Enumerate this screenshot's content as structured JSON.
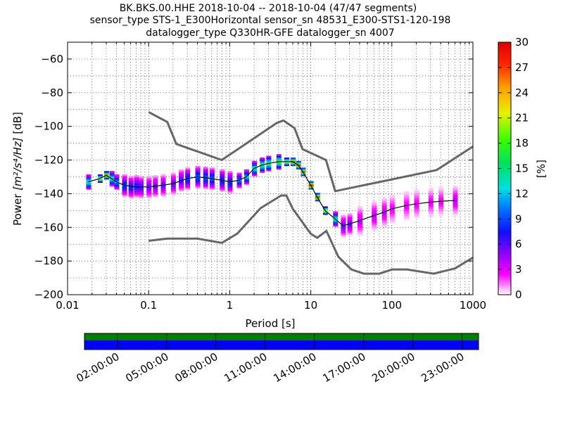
{
  "title_lines": [
    "BK.BKS.00.HHE   2018-10-04 -- 2018-10-04  (47/47 segments)",
    "sensor_type STS-1_E300Horizontal sensor_sn 48531_E300-STS1-120-198",
    "datalogger_type Q330HR-GFE datalogger_sn 4007"
  ],
  "colorbar": {
    "label": "[%]",
    "ticks": [
      "0",
      "3",
      "6",
      "9",
      "12",
      "15",
      "18",
      "21",
      "24",
      "27",
      "30"
    ],
    "range": [
      0,
      30
    ]
  },
  "timeline": {
    "tick_labels": [
      "02:00:00",
      "05:00:00",
      "08:00:00",
      "11:00:00",
      "14:00:00",
      "17:00:00",
      "20:00:00",
      "23:00:00"
    ],
    "coverage_color": "#008000",
    "data_color": "#0000ff"
  },
  "colors": {
    "model_curve": "#666666",
    "mean_curve": "#000000",
    "grid": "#000000"
  },
  "chart_data": {
    "type": "heatmap",
    "xlabel": "Period [s]",
    "ylabel_prefix": "Power ",
    "ylabel_math": "[m²/s⁴/Hz]",
    "ylabel_suffix": " [dB]",
    "xscale": "log",
    "xlim": [
      0.01,
      1000
    ],
    "ylim": [
      -200,
      -50
    ],
    "x_ticks": [
      {
        "v": 0.01,
        "label": "0.01"
      },
      {
        "v": 0.1,
        "label": "0.1"
      },
      {
        "v": 1,
        "label": "1"
      },
      {
        "v": 10,
        "label": "10"
      },
      {
        "v": 100,
        "label": "100"
      },
      {
        "v": 1000,
        "label": "1000"
      }
    ],
    "y_ticks": [
      -60,
      -80,
      -100,
      -120,
      -140,
      -160,
      -180,
      -200
    ],
    "grid": true,
    "nhnm": [
      [
        0.1,
        -91.5
      ],
      [
        0.17,
        -97.4
      ],
      [
        0.22,
        -110.5
      ],
      [
        0.8,
        -120
      ],
      [
        3.8,
        -98
      ],
      [
        4.6,
        -96.5
      ],
      [
        6.3,
        -101
      ],
      [
        7.9,
        -113.5
      ],
      [
        15.4,
        -120
      ],
      [
        20,
        -138.5
      ],
      [
        354.8,
        -126
      ],
      [
        1000,
        -112
      ]
    ],
    "nlnm": [
      [
        0.1,
        -168
      ],
      [
        0.17,
        -166.7
      ],
      [
        0.4,
        -166.7
      ],
      [
        0.8,
        -169.2
      ],
      [
        1.24,
        -163.7
      ],
      [
        2.4,
        -148.6
      ],
      [
        4.3,
        -141.1
      ],
      [
        5,
        -141.1
      ],
      [
        6,
        -149
      ],
      [
        10,
        -163.8
      ],
      [
        12,
        -166.2
      ],
      [
        15.6,
        -162.1
      ],
      [
        21.9,
        -177.5
      ],
      [
        31.6,
        -185
      ],
      [
        45,
        -187.5
      ],
      [
        70,
        -187.5
      ],
      [
        101,
        -185
      ],
      [
        154,
        -185
      ],
      [
        328,
        -187.5
      ],
      [
        600,
        -184.4
      ],
      [
        1000,
        -178
      ]
    ],
    "mean": [
      [
        0.018,
        -133
      ],
      [
        0.025,
        -131
      ],
      [
        0.03,
        -129
      ],
      [
        0.04,
        -133
      ],
      [
        0.05,
        -135
      ],
      [
        0.07,
        -136
      ],
      [
        0.1,
        -136
      ],
      [
        0.15,
        -135
      ],
      [
        0.2,
        -134
      ],
      [
        0.3,
        -131
      ],
      [
        0.4,
        -130
      ],
      [
        0.6,
        -131
      ],
      [
        0.8,
        -132
      ],
      [
        1,
        -133
      ],
      [
        1.3,
        -132
      ],
      [
        1.6,
        -130
      ],
      [
        2,
        -125
      ],
      [
        2.5,
        -123
      ],
      [
        3,
        -122
      ],
      [
        4,
        -121
      ],
      [
        5,
        -121
      ],
      [
        6,
        -121
      ],
      [
        7,
        -123
      ],
      [
        8,
        -127
      ],
      [
        10,
        -135
      ],
      [
        12,
        -142
      ],
      [
        15,
        -150
      ],
      [
        20,
        -155
      ],
      [
        25,
        -159
      ],
      [
        30,
        -158
      ],
      [
        40,
        -156
      ],
      [
        60,
        -153
      ],
      [
        80,
        -151
      ],
      [
        100,
        -149
      ],
      [
        150,
        -147
      ],
      [
        200,
        -146
      ],
      [
        300,
        -145
      ],
      [
        400,
        -144.5
      ],
      [
        600,
        -144
      ]
    ],
    "density_points": [
      [
        0.018,
        -133,
        15
      ],
      [
        0.025,
        -131,
        21
      ],
      [
        0.03,
        -129,
        24
      ],
      [
        0.035,
        -131,
        15
      ],
      [
        0.04,
        -133,
        12
      ],
      [
        0.05,
        -135,
        9
      ],
      [
        0.06,
        -136,
        8
      ],
      [
        0.07,
        -135.5,
        8
      ],
      [
        0.08,
        -136,
        7
      ],
      [
        0.1,
        -136,
        6
      ],
      [
        0.12,
        -135.5,
        6
      ],
      [
        0.15,
        -135,
        6
      ],
      [
        0.2,
        -134,
        6
      ],
      [
        0.25,
        -132,
        7
      ],
      [
        0.3,
        -131,
        9
      ],
      [
        0.4,
        -130,
        10
      ],
      [
        0.5,
        -130.5,
        10
      ],
      [
        0.6,
        -131,
        10
      ],
      [
        0.8,
        -132,
        9
      ],
      [
        1,
        -133,
        9
      ],
      [
        1.3,
        -132,
        11
      ],
      [
        1.6,
        -130,
        13
      ],
      [
        2,
        -125,
        15
      ],
      [
        2.5,
        -123,
        17
      ],
      [
        3,
        -122,
        18
      ],
      [
        4,
        -121,
        19
      ],
      [
        5,
        -121,
        21
      ],
      [
        6,
        -121,
        27
      ],
      [
        7,
        -123,
        27
      ],
      [
        8,
        -127,
        27
      ],
      [
        10,
        -135,
        28
      ],
      [
        12,
        -142,
        27
      ],
      [
        15,
        -150,
        21
      ],
      [
        20,
        -155,
        15
      ],
      [
        25,
        -159,
        6
      ],
      [
        30,
        -158,
        6
      ],
      [
        40,
        -156,
        4
      ],
      [
        60,
        -153,
        4
      ],
      [
        80,
        -151,
        4
      ],
      [
        100,
        -149,
        3
      ],
      [
        150,
        -147,
        3
      ],
      [
        200,
        -146,
        3
      ],
      [
        300,
        -145,
        3
      ],
      [
        400,
        -144.5,
        3
      ],
      [
        600,
        -144,
        4
      ]
    ]
  }
}
